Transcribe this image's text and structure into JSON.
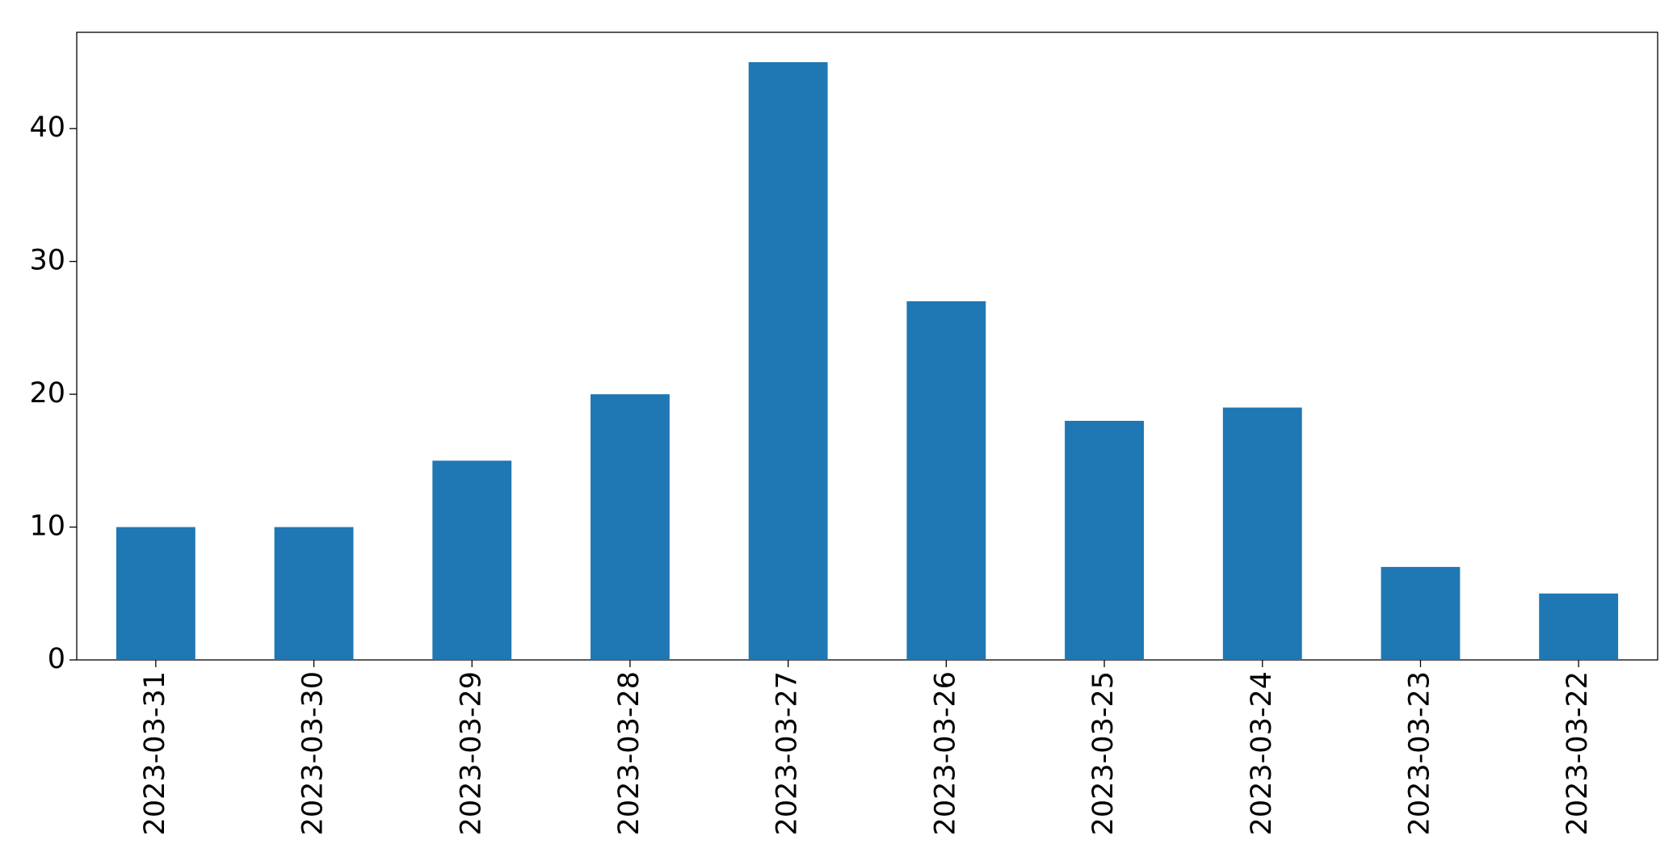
{
  "chart_data": {
    "type": "bar",
    "categories": [
      "2023-03-31",
      "2023-03-30",
      "2023-03-29",
      "2023-03-28",
      "2023-03-27",
      "2023-03-26",
      "2023-03-25",
      "2023-03-24",
      "2023-03-23",
      "2023-03-22"
    ],
    "values": [
      10,
      10,
      15,
      20,
      45,
      27,
      18,
      19,
      7,
      5
    ],
    "color": "#1f77b4",
    "ylim": [
      0,
      47.25
    ],
    "yticks": [
      0,
      10,
      20,
      30,
      40
    ],
    "grid": false
  }
}
